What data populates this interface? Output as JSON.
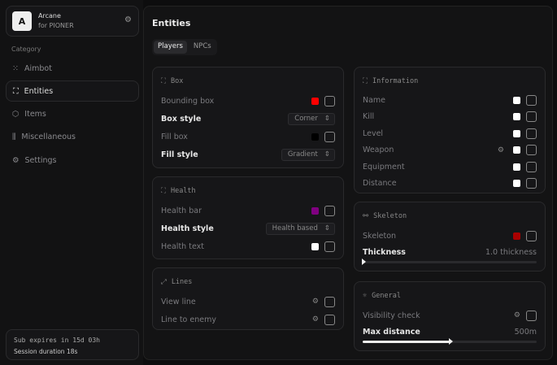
{
  "brand": {
    "logo": "A",
    "name": "Arcane",
    "subtitle": "for PIONER"
  },
  "sidebar": {
    "category_label": "Category",
    "items": [
      {
        "label": "Aimbot",
        "icon": "crosshair-icon",
        "active": false
      },
      {
        "label": "Entities",
        "icon": "scan-face-icon",
        "active": true
      },
      {
        "label": "Items",
        "icon": "box-icon",
        "active": false
      },
      {
        "label": "Miscellaneous",
        "icon": "sliders-icon",
        "active": false
      },
      {
        "label": "Settings",
        "icon": "gear-icon",
        "active": false
      }
    ]
  },
  "footer": {
    "sub": "Sub expires in 15d 03h",
    "session": "Session duration 18s"
  },
  "main": {
    "title": "Entities",
    "tabs": [
      {
        "label": "Players",
        "active": true
      },
      {
        "label": "NPCs",
        "active": false
      }
    ]
  },
  "box": {
    "title": "Box",
    "bounding_box": {
      "label": "Bounding box",
      "color": "#ff0000",
      "checked": false
    },
    "box_style": {
      "label": "Box style",
      "value": "Corner"
    },
    "fill_box": {
      "label": "Fill box",
      "color": "#000000",
      "checked": false
    },
    "fill_style": {
      "label": "Fill style",
      "value": "Gradient"
    }
  },
  "health": {
    "title": "Health",
    "health_bar": {
      "label": "Health bar",
      "color": "#800080",
      "checked": false
    },
    "health_style": {
      "label": "Health style",
      "value": "Health based"
    },
    "health_text": {
      "label": "Health text",
      "color": "#ffffff",
      "checked": false
    }
  },
  "lines": {
    "title": "Lines",
    "view_line": {
      "label": "View line",
      "checked": false
    },
    "line_to_enemy": {
      "label": "Line to enemy",
      "checked": false
    }
  },
  "information": {
    "title": "Information",
    "items": [
      {
        "label": "Name",
        "color": "#ffffff",
        "checked": false
      },
      {
        "label": "Kill",
        "color": "#ffffff",
        "checked": false
      },
      {
        "label": "Level",
        "color": "#ffffff",
        "checked": false
      },
      {
        "label": "Weapon",
        "color": "#ffffff",
        "checked": false,
        "gear": true
      },
      {
        "label": "Equipment",
        "color": "#ffffff",
        "checked": false
      },
      {
        "label": "Distance",
        "color": "#ffffff",
        "checked": false
      }
    ]
  },
  "skeleton": {
    "title": "Skeleton",
    "skeleton": {
      "label": "Skeleton",
      "color": "#aa0000",
      "checked": false
    },
    "thickness": {
      "label": "Thickness",
      "value_text": "1.0 thickness",
      "fraction": 0.0
    }
  },
  "general": {
    "title": "General",
    "visibility": {
      "label": "Visibility check",
      "checked": false
    },
    "max_distance": {
      "label": "Max distance",
      "value_text": "500m",
      "fraction": 0.5
    }
  }
}
